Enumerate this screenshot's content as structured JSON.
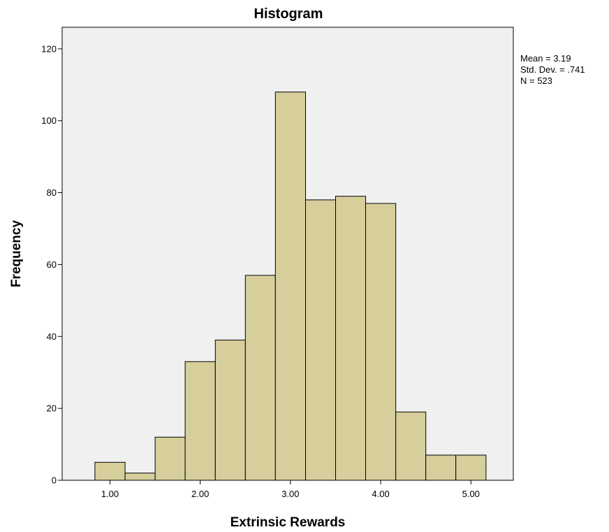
{
  "chart_data": {
    "type": "bar",
    "subtype": "histogram",
    "title": "Histogram",
    "xlabel": "Extrinsic Rewards",
    "ylabel": "Frequency",
    "bin_width": 0.333,
    "bins": [
      {
        "start": 0.833,
        "end": 1.167,
        "count": 5
      },
      {
        "start": 1.167,
        "end": 1.5,
        "count": 2
      },
      {
        "start": 1.5,
        "end": 1.833,
        "count": 12
      },
      {
        "start": 1.833,
        "end": 2.167,
        "count": 33
      },
      {
        "start": 2.167,
        "end": 2.5,
        "count": 39
      },
      {
        "start": 2.5,
        "end": 2.833,
        "count": 57
      },
      {
        "start": 2.833,
        "end": 3.167,
        "count": 108
      },
      {
        "start": 3.167,
        "end": 3.5,
        "count": 78
      },
      {
        "start": 3.5,
        "end": 3.833,
        "count": 79
      },
      {
        "start": 3.833,
        "end": 4.167,
        "count": 77
      },
      {
        "start": 4.167,
        "end": 4.5,
        "count": 19
      },
      {
        "start": 4.5,
        "end": 4.833,
        "count": 7
      },
      {
        "start": 4.833,
        "end": 5.167,
        "count": 7
      }
    ],
    "xlim": [
      0.47,
      5.47
    ],
    "ylim": [
      0,
      126
    ],
    "x_ticks": [
      {
        "value": 1,
        "label": "1.00"
      },
      {
        "value": 2,
        "label": "2.00"
      },
      {
        "value": 3,
        "label": "3.00"
      },
      {
        "value": 4,
        "label": "4.00"
      },
      {
        "value": 5,
        "label": "5.00"
      }
    ],
    "y_ticks": [
      {
        "value": 0,
        "label": "0"
      },
      {
        "value": 20,
        "label": "20"
      },
      {
        "value": 40,
        "label": "40"
      },
      {
        "value": 60,
        "label": "60"
      },
      {
        "value": 80,
        "label": "80"
      },
      {
        "value": 100,
        "label": "100"
      },
      {
        "value": 120,
        "label": "120"
      }
    ],
    "grid": false,
    "stats": {
      "mean": "Mean = 3.19",
      "std_dev": "Std. Dev. = .741",
      "n": "N = 523"
    },
    "legend_placement": "top-right",
    "colors": {
      "bar_fill": "#d6cf9c",
      "bar_stroke": "#000000",
      "plot_background": "#f0f0f0",
      "frame": "#000000"
    }
  }
}
